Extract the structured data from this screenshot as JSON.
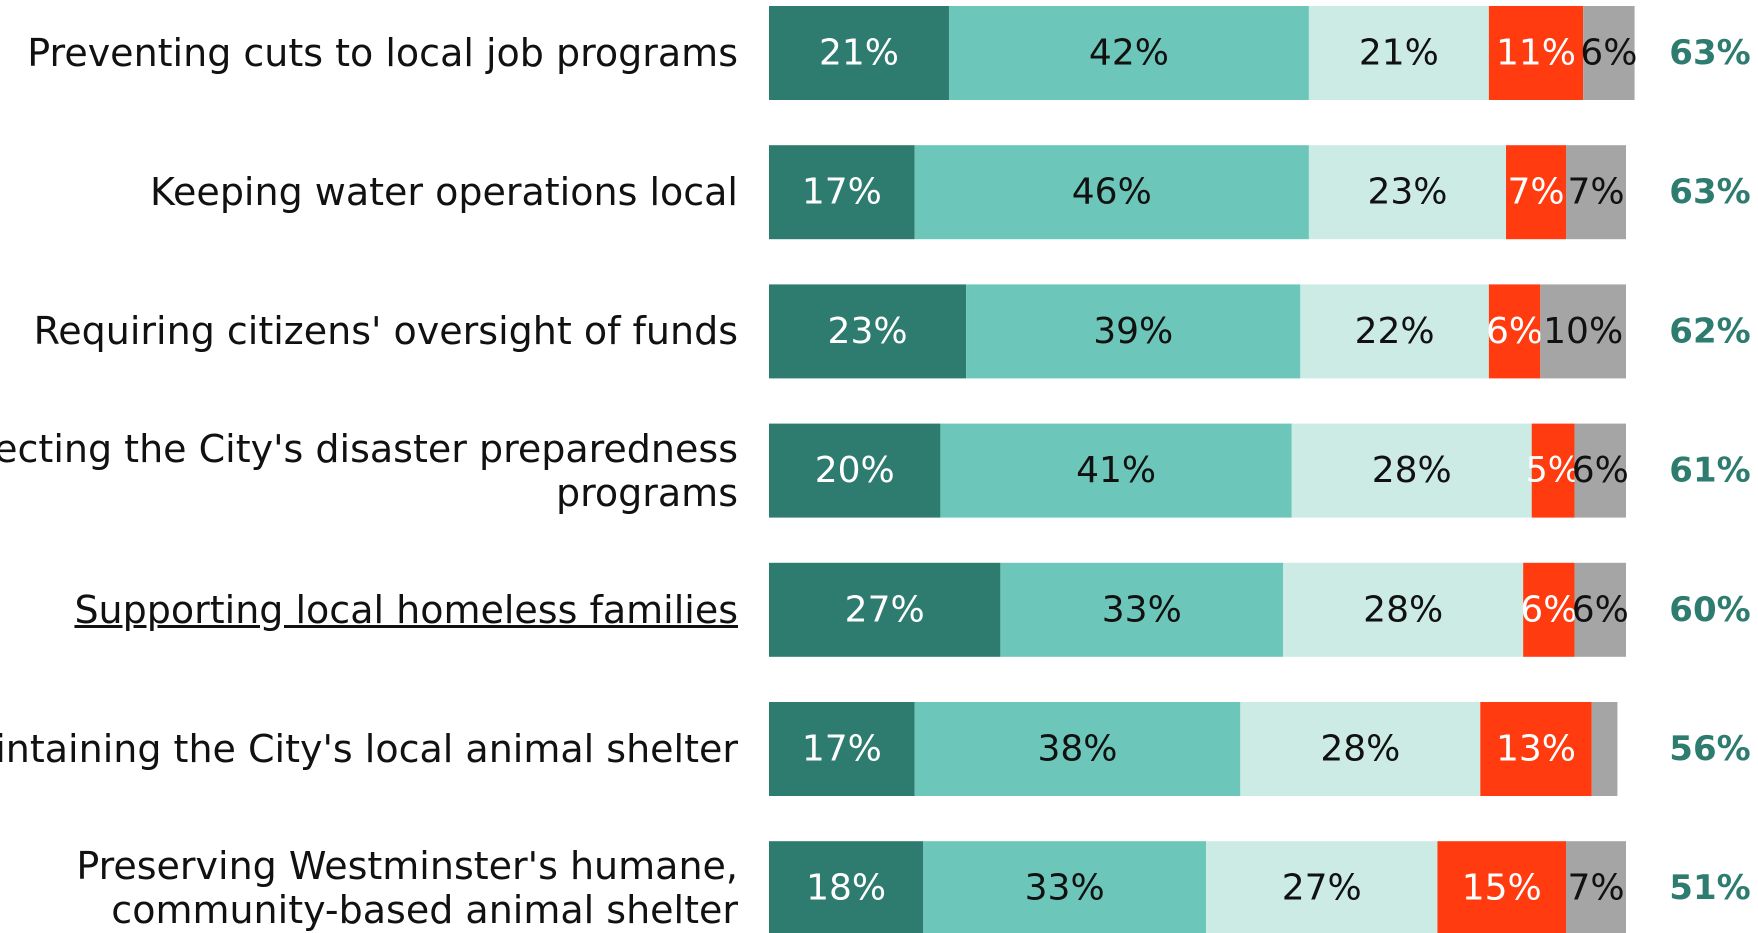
{
  "chart_data": {
    "type": "stacked-bar-horizontal",
    "categories": [
      "Preventing cuts to local job programs",
      "Keeping water operations local",
      "Requiring citizens' oversight of funds",
      "Protecting the City's disaster preparedness\nprograms",
      "Supporting local homeless families",
      "Maintaining the City's local animal shelter",
      "Preserving Westminster's humane,\ncommunity-based animal shelter"
    ],
    "underlined_categories": [
      4
    ],
    "xlim": [
      0,
      100
    ],
    "series": [
      {
        "color": "#2e7b6f",
        "text_color": "#ffffff",
        "values": [
          21,
          17,
          23,
          20,
          27,
          17,
          18
        ],
        "value_labels": [
          "21%",
          "17%",
          "23%",
          "20%",
          "27%",
          "17%",
          "18%"
        ]
      },
      {
        "color": "#6cc6b9",
        "text_color": "#111111",
        "values": [
          42,
          46,
          39,
          41,
          33,
          38,
          33
        ],
        "value_labels": [
          "42%",
          "46%",
          "39%",
          "41%",
          "33%",
          "38%",
          "33%"
        ]
      },
      {
        "color": "#cdebe5",
        "text_color": "#111111",
        "values": [
          21,
          23,
          22,
          28,
          28,
          28,
          27
        ],
        "value_labels": [
          "21%",
          "23%",
          "22%",
          "28%",
          "28%",
          "28%",
          "27%"
        ]
      },
      {
        "color": "#ff3b0f",
        "text_color": "#ffffff",
        "values": [
          11,
          7,
          6,
          5,
          6,
          13,
          15
        ],
        "value_labels": [
          "11%",
          "7%",
          "6%",
          "5%",
          "6%",
          "13%",
          "15%"
        ]
      },
      {
        "color": "#a5a5a5",
        "text_color": "#111111",
        "values": [
          6,
          7,
          10,
          6,
          6,
          3,
          7
        ],
        "value_labels": [
          "6%",
          "7%",
          "10%",
          "6%",
          "6%",
          null,
          "7%"
        ]
      }
    ],
    "totals": {
      "color": "#2e7b6f",
      "values": [
        63,
        63,
        62,
        61,
        60,
        56,
        51
      ],
      "value_labels": [
        "63%",
        "63%",
        "62%",
        "61%",
        "60%",
        "56%",
        "51%"
      ]
    }
  }
}
